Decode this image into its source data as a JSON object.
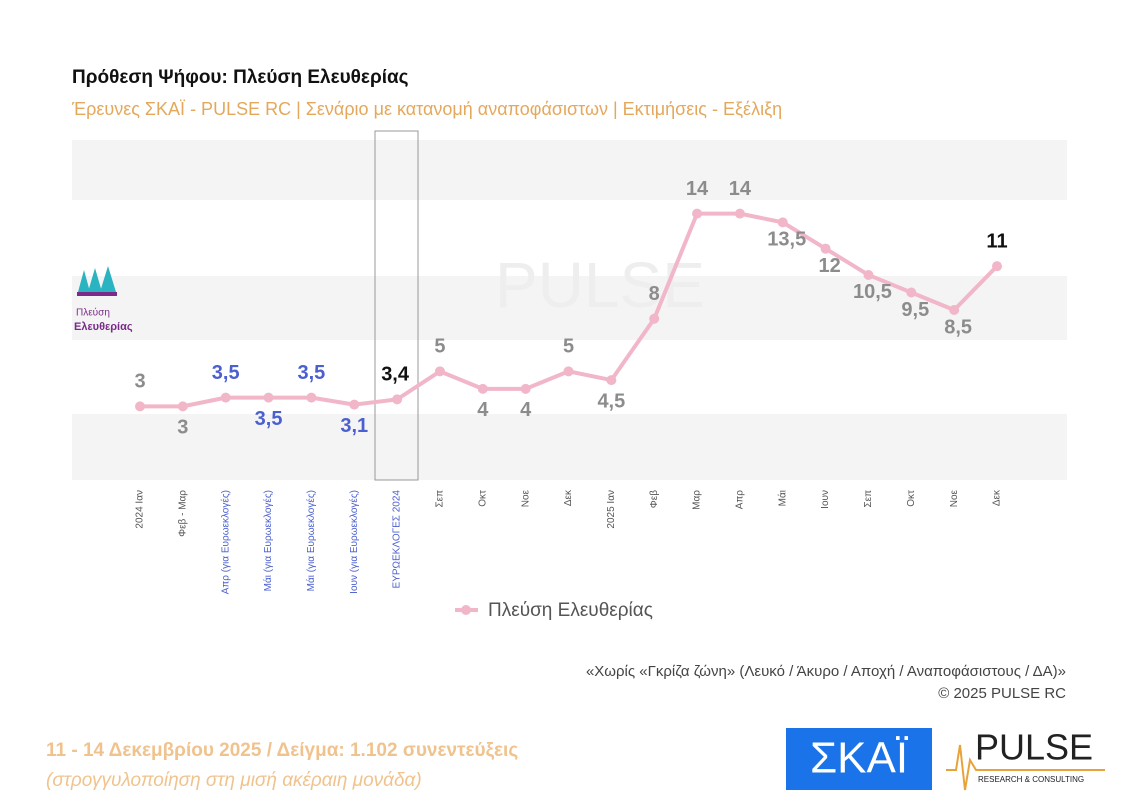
{
  "chart_data": {
    "type": "line",
    "title": "Πρόθεση Ψήφου:  Πλεύση Ελευθερίας",
    "subtitle": "Έρευνες ΣΚΑΪ - PULSE RC  |  Σενάριο με κατανομή αναποφάσιστων  |  Εκτιμήσεις - Εξέλιξη",
    "categories": [
      "2024 Ιαν",
      "Φεβ - Μαρ",
      "Απρ (για Ευρωεκλογές)",
      "Μάι (για Ευρωεκλογές)",
      "Μάι (για Ευρωεκλογές)",
      "Ιουν (για Ευρωεκλογές)",
      "ΕΥΡΩΕΚΛΟΓΕΣ 2024",
      "Σεπ",
      "Οκτ",
      "Νοε",
      "Δεκ",
      "2025 Ιαν",
      "Φεβ",
      "Μαρ",
      "Απρ",
      "Μάι",
      "Ιουν",
      "Σεπ",
      "Οκτ",
      "Νοε",
      "Δεκ"
    ],
    "series": [
      {
        "name": "Πλεύση Ελευθερίας",
        "color": "#f2b6c9",
        "values": [
          3,
          3,
          3.5,
          3.5,
          3.5,
          3.1,
          3.4,
          5,
          4,
          4,
          5,
          4.5,
          8,
          14,
          14,
          13.5,
          12,
          10.5,
          9.5,
          8.5,
          11
        ],
        "value_labels": [
          "3",
          "3",
          "3,5",
          "3,5",
          "3,5",
          "3,1",
          "3,4",
          "5",
          "4",
          "4",
          "5",
          "4,5",
          "8",
          "14",
          "14",
          "13,5",
          "12",
          "10,5",
          "9,5",
          "8,5",
          "11"
        ]
      }
    ],
    "ylim": [
      -1.2,
      18.2
    ],
    "legend": "bottom",
    "note": "«Χωρίς «Γκρίζα ζώνη»   (Λευκό / Άκυρο / Αποχή / Αναποφάσιστους / ΔΑ)»",
    "copyright": "©  2025  PULSE RC",
    "footer": "11 - 14 Δεκεμβρίου 2025  /  Δείγμα:  1.102 συνεντεύξεις",
    "footnote": "(στρογγυλοποίηση στη μισή ακέραιη μονάδα)"
  },
  "logos": {
    "party": [
      "Πλεύση",
      "Ελευθερίας"
    ],
    "skai": "ΣΚΑΪ",
    "pulse": "PULSE",
    "pulse_tagline": "RESEARCH & CONSULTING"
  }
}
